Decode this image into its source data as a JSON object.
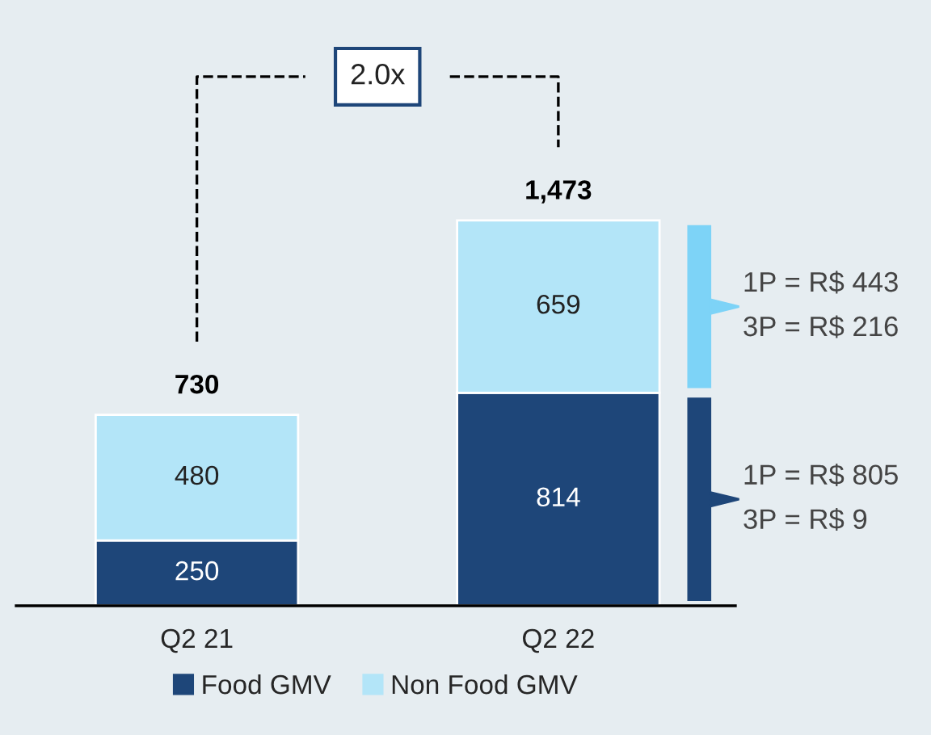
{
  "chart_data": {
    "type": "bar",
    "stacked": true,
    "categories": [
      "Q2 21",
      "Q2 22"
    ],
    "series": [
      {
        "name": "Food GMV",
        "color": "#1e4679",
        "values": [
          250,
          814
        ]
      },
      {
        "name": "Non Food GMV",
        "color": "#b3e5f8",
        "values": [
          480,
          659
        ]
      }
    ],
    "tick_labels": "x",
    "data_labels": true,
    "totals": [
      "730",
      "1,473"
    ],
    "legend": "bottom",
    "grid": false,
    "annotations": [
      "2.0x",
      "1P = R$ 443\n3P = R$ 216",
      "1P = R$ 805\n3P = R$ 9"
    ]
  }
}
